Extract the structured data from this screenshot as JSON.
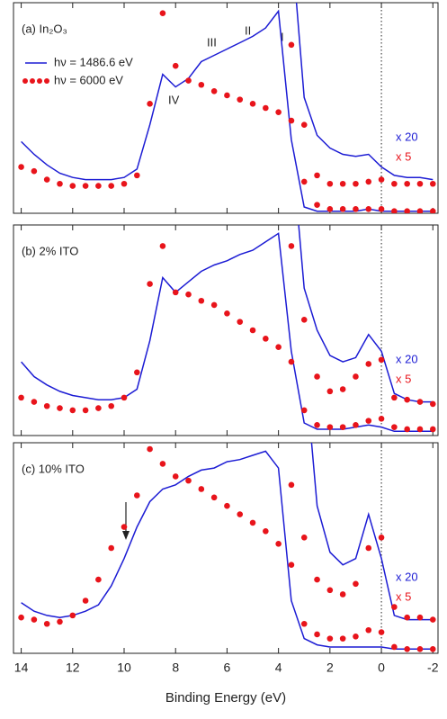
{
  "chart_data": [
    {
      "type": "line",
      "title": "(a) In₂O₃",
      "x": [
        14,
        13.5,
        13,
        12.5,
        12,
        11.5,
        11,
        10.5,
        10,
        9.5,
        9,
        8.5,
        8,
        7.5,
        7,
        6.5,
        6,
        5.5,
        5,
        4.5,
        4,
        3.5,
        3,
        2.5,
        2,
        1.5,
        1,
        0.5,
        0,
        -0.5,
        -1,
        -1.5,
        -2
      ],
      "xlim": [
        14.3,
        -2.2
      ],
      "xticks": [
        14,
        12,
        10,
        8,
        6,
        4,
        2,
        0,
        -2
      ],
      "ylim": [
        0,
        100
      ],
      "vline": 0,
      "legend": "upper left",
      "annotations": [
        "I",
        "II",
        "III",
        "IV"
      ],
      "series": [
        {
          "name": "hν = 1486.6 eV",
          "color": "#1c1cd4",
          "style": "line",
          "values": [
            34,
            28,
            23,
            19,
            17,
            16,
            16,
            16,
            17,
            21,
            42,
            66,
            60,
            64,
            72,
            75,
            78,
            81,
            84,
            88,
            96,
            35,
            3,
            1,
            1,
            1,
            1,
            2,
            1,
            1,
            1,
            1,
            1
          ]
        },
        {
          "name": "hν = 6000 eV",
          "color": "#e8141b",
          "style": "dots",
          "values": [
            22,
            20,
            16,
            14,
            13,
            13,
            13,
            13,
            14,
            18,
            52,
            95,
            70,
            63,
            61,
            58,
            56,
            54,
            52,
            50,
            48,
            44,
            15,
            4,
            2,
            2,
            2,
            2,
            2,
            1,
            1,
            1,
            1
          ]
        },
        {
          "color": "#1c1cd4",
          "style": "line",
          "magnification": "x 20",
          "values": [
            null,
            null,
            null,
            null,
            null,
            null,
            null,
            null,
            null,
            null,
            null,
            null,
            null,
            null,
            null,
            null,
            null,
            null,
            null,
            null,
            null,
            130,
            55,
            37,
            31,
            28,
            27,
            28,
            22,
            18,
            17,
            17,
            16
          ]
        },
        {
          "color": "#e8141b",
          "style": "dots",
          "magnification": "x 5",
          "values": [
            null,
            null,
            null,
            null,
            null,
            null,
            null,
            null,
            null,
            null,
            null,
            null,
            null,
            null,
            null,
            null,
            null,
            null,
            null,
            null,
            null,
            80,
            42,
            18,
            14,
            14,
            14,
            15,
            16,
            14,
            14,
            14,
            14
          ]
        }
      ]
    },
    {
      "type": "line",
      "title": "(b) 2% ITO",
      "x": [
        14,
        13.5,
        13,
        12.5,
        12,
        11.5,
        11,
        10.5,
        10,
        9.5,
        9,
        8.5,
        8,
        7.5,
        7,
        6.5,
        6,
        5.5,
        5,
        4.5,
        4,
        3.5,
        3,
        2.5,
        2,
        1.5,
        1,
        0.5,
        0,
        -0.5,
        -1,
        -1.5,
        -2
      ],
      "xlim": [
        14.3,
        -2.2
      ],
      "xticks": [
        14,
        12,
        10,
        8,
        6,
        4,
        2,
        0,
        -2
      ],
      "ylim": [
        0,
        100
      ],
      "vline": 0,
      "series": [
        {
          "color": "#1c1cd4",
          "style": "line",
          "values": [
            35,
            28,
            24,
            21,
            19,
            18,
            17,
            17,
            18,
            22,
            45,
            75,
            68,
            73,
            78,
            81,
            83,
            86,
            88,
            92,
            96,
            40,
            6,
            3,
            3,
            3,
            4,
            5,
            4,
            2,
            2,
            2,
            2
          ]
        },
        {
          "color": "#e8141b",
          "style": "dots",
          "values": [
            18,
            16,
            14,
            13,
            12,
            12,
            13,
            14,
            18,
            30,
            72,
            90,
            68,
            67,
            64,
            62,
            58,
            54,
            50,
            46,
            42,
            35,
            12,
            5,
            4,
            4,
            5,
            7,
            8,
            4,
            3,
            3,
            3
          ]
        },
        {
          "color": "#1c1cd4",
          "style": "line",
          "magnification": "x 20",
          "values": [
            null,
            null,
            null,
            null,
            null,
            null,
            null,
            null,
            null,
            null,
            null,
            null,
            null,
            null,
            null,
            null,
            null,
            null,
            null,
            null,
            null,
            140,
            70,
            50,
            38,
            35,
            37,
            48,
            40,
            20,
            17,
            16,
            16
          ]
        },
        {
          "color": "#e8141b",
          "style": "dots",
          "magnification": "x 5",
          "values": [
            null,
            null,
            null,
            null,
            null,
            null,
            null,
            null,
            null,
            null,
            null,
            null,
            null,
            null,
            null,
            null,
            null,
            null,
            null,
            null,
            null,
            90,
            55,
            28,
            21,
            22,
            28,
            34,
            36,
            18,
            17,
            16,
            15
          ]
        }
      ]
    },
    {
      "type": "line",
      "title": "(c) 10% ITO",
      "xlabel": "Binding Energy (eV)",
      "x": [
        14,
        13.5,
        13,
        12.5,
        12,
        11.5,
        11,
        10.5,
        10,
        9.5,
        9,
        8.5,
        8,
        7.5,
        7,
        6.5,
        6,
        5.5,
        5,
        4.5,
        4,
        3.5,
        3,
        2.5,
        2,
        1.5,
        1,
        0.5,
        0,
        -0.5,
        -1,
        -1.5,
        -2
      ],
      "xlim": [
        14.3,
        -2.2
      ],
      "xticks": [
        14,
        12,
        10,
        8,
        6,
        4,
        2,
        0,
        -2
      ],
      "ylim": [
        0,
        100
      ],
      "vline": 0,
      "series": [
        {
          "color": "#1c1cd4",
          "style": "line",
          "values": [
            24,
            20,
            18,
            17,
            18,
            20,
            23,
            32,
            45,
            60,
            72,
            78,
            80,
            84,
            87,
            88,
            91,
            92,
            94,
            96,
            88,
            25,
            7,
            4,
            3,
            3,
            3,
            3,
            3,
            2,
            2,
            2,
            2
          ]
        },
        {
          "color": "#e8141b",
          "style": "dots",
          "values": [
            17,
            16,
            14,
            15,
            18,
            25,
            35,
            50,
            60,
            75,
            97,
            90,
            84,
            82,
            78,
            74,
            70,
            66,
            62,
            58,
            52,
            42,
            14,
            9,
            7,
            7,
            8,
            11,
            10,
            3,
            2,
            2,
            2
          ]
        },
        {
          "color": "#1c1cd4",
          "style": "line",
          "magnification": "x 20",
          "values": [
            null,
            null,
            null,
            null,
            null,
            null,
            null,
            null,
            null,
            null,
            null,
            null,
            null,
            null,
            null,
            null,
            null,
            null,
            null,
            null,
            null,
            null,
            140,
            70,
            48,
            42,
            45,
            66,
            45,
            18,
            16,
            16,
            16
          ]
        },
        {
          "color": "#e8141b",
          "style": "dots",
          "magnification": "x 5",
          "values": [
            null,
            null,
            null,
            null,
            null,
            null,
            null,
            null,
            null,
            null,
            null,
            null,
            null,
            null,
            null,
            null,
            null,
            null,
            null,
            null,
            null,
            80,
            55,
            35,
            30,
            28,
            33,
            50,
            55,
            22,
            17,
            17,
            16
          ]
        }
      ]
    }
  ]
}
